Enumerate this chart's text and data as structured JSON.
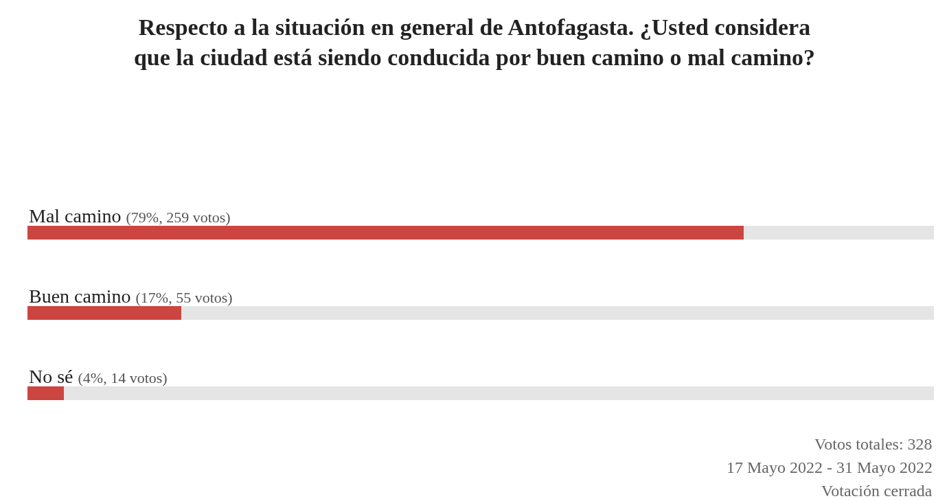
{
  "chart_data": {
    "type": "bar",
    "orientation": "horizontal",
    "stacked": true,
    "title": "Respecto a la situación en general de Antofagasta. ¿Usted considera que la ciudad está siendo conducida por buen camino o mal camino?",
    "categories": [
      "Mal camino",
      "Buen camino",
      "No sé"
    ],
    "series": [
      {
        "color": "#cc4541",
        "values": [
          79,
          17,
          4
        ],
        "value_labels": [
          "(79%, 259 votos)",
          "(17%, 55 votos)",
          "(4%, 14 votos)"
        ]
      },
      {
        "color": "#e5e5e5",
        "values": [
          21,
          83,
          96
        ]
      }
    ],
    "xlim": [
      0,
      100
    ],
    "tick_labels": false,
    "annotations": [
      "Votos totales: 328",
      "17 Mayo 2022 - 31 Mayo 2022",
      "Votación cerrada"
    ]
  }
}
